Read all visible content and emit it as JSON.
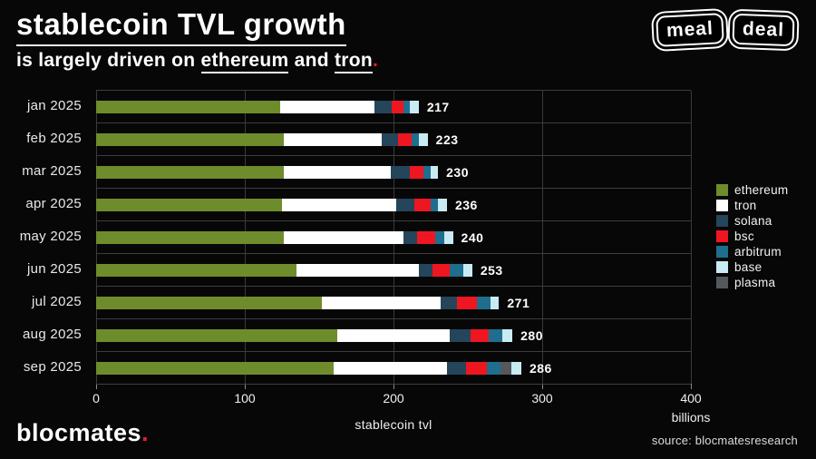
{
  "header": {
    "title": "stablecoin TVL growth",
    "subtitle_prefix": "is largely driven on ",
    "subtitle_chain1": "ethereum",
    "subtitle_mid": " and ",
    "subtitle_chain2": "tron",
    "subtitle_period": ".",
    "logo_word1": "meal",
    "logo_word2": "deal"
  },
  "chart_data": {
    "type": "bar",
    "orientation": "horizontal",
    "stacked": true,
    "xlabel": "stablecoin tvl",
    "x_unit": "billions",
    "xlim": [
      0,
      400
    ],
    "x_ticks": [
      0,
      100,
      200,
      300,
      400
    ],
    "grid": "vertical",
    "legend_position": "right",
    "legend": [
      "ethereum",
      "tron",
      "solana",
      "bsc",
      "arbitrum",
      "base",
      "plasma"
    ],
    "series_colors": {
      "ethereum": "#6f8c2c",
      "tron": "#ffffff",
      "solana": "#25455a",
      "bsc": "#ee1620",
      "arbitrum": "#1f6e8e",
      "base": "#c9ebf3",
      "plasma": "#54585a"
    },
    "categories": [
      "jan 2025",
      "feb 2025",
      "mar 2025",
      "apr 2025",
      "may 2025",
      "jun 2025",
      "jul 2025",
      "aug 2025",
      "sep 2025"
    ],
    "rows": [
      {
        "month": "jan 2025",
        "total": 217,
        "segments": [
          {
            "chain": "ethereum",
            "value": 124
          },
          {
            "chain": "tron",
            "value": 63
          },
          {
            "chain": "solana",
            "value": 12
          },
          {
            "chain": "bsc",
            "value": 8
          },
          {
            "chain": "arbitrum",
            "value": 4
          },
          {
            "chain": "base",
            "value": 6
          }
        ]
      },
      {
        "month": "feb 2025",
        "total": 223,
        "segments": [
          {
            "chain": "ethereum",
            "value": 126
          },
          {
            "chain": "tron",
            "value": 66
          },
          {
            "chain": "solana",
            "value": 11
          },
          {
            "chain": "bsc",
            "value": 9
          },
          {
            "chain": "arbitrum",
            "value": 5
          },
          {
            "chain": "base",
            "value": 6
          }
        ]
      },
      {
        "month": "mar 2025",
        "total": 230,
        "segments": [
          {
            "chain": "ethereum",
            "value": 126
          },
          {
            "chain": "tron",
            "value": 72
          },
          {
            "chain": "solana",
            "value": 13
          },
          {
            "chain": "bsc",
            "value": 9
          },
          {
            "chain": "arbitrum",
            "value": 5
          },
          {
            "chain": "base",
            "value": 5
          }
        ]
      },
      {
        "month": "apr 2025",
        "total": 236,
        "segments": [
          {
            "chain": "ethereum",
            "value": 125
          },
          {
            "chain": "tron",
            "value": 77
          },
          {
            "chain": "solana",
            "value": 12
          },
          {
            "chain": "bsc",
            "value": 11
          },
          {
            "chain": "arbitrum",
            "value": 5
          },
          {
            "chain": "base",
            "value": 6
          }
        ]
      },
      {
        "month": "may 2025",
        "total": 240,
        "segments": [
          {
            "chain": "ethereum",
            "value": 126
          },
          {
            "chain": "tron",
            "value": 81
          },
          {
            "chain": "solana",
            "value": 9
          },
          {
            "chain": "bsc",
            "value": 12
          },
          {
            "chain": "arbitrum",
            "value": 6
          },
          {
            "chain": "base",
            "value": 6
          }
        ]
      },
      {
        "month": "jun 2025",
        "total": 253,
        "segments": [
          {
            "chain": "ethereum",
            "value": 135
          },
          {
            "chain": "tron",
            "value": 82
          },
          {
            "chain": "solana",
            "value": 9
          },
          {
            "chain": "bsc",
            "value": 12
          },
          {
            "chain": "arbitrum",
            "value": 9
          },
          {
            "chain": "base",
            "value": 6
          }
        ]
      },
      {
        "month": "jul 2025",
        "total": 271,
        "segments": [
          {
            "chain": "ethereum",
            "value": 152
          },
          {
            "chain": "tron",
            "value": 80
          },
          {
            "chain": "solana",
            "value": 11
          },
          {
            "chain": "bsc",
            "value": 13
          },
          {
            "chain": "arbitrum",
            "value": 9
          },
          {
            "chain": "base",
            "value": 6
          }
        ]
      },
      {
        "month": "aug 2025",
        "total": 280,
        "segments": [
          {
            "chain": "ethereum",
            "value": 162
          },
          {
            "chain": "tron",
            "value": 76
          },
          {
            "chain": "solana",
            "value": 14
          },
          {
            "chain": "bsc",
            "value": 12
          },
          {
            "chain": "arbitrum",
            "value": 9
          },
          {
            "chain": "base",
            "value": 7
          }
        ]
      },
      {
        "month": "sep 2025",
        "total": 286,
        "segments": [
          {
            "chain": "ethereum",
            "value": 160
          },
          {
            "chain": "tron",
            "value": 76
          },
          {
            "chain": "solana",
            "value": 13
          },
          {
            "chain": "bsc",
            "value": 14
          },
          {
            "chain": "arbitrum",
            "value": 9
          },
          {
            "chain": "plasma",
            "value": 7
          },
          {
            "chain": "base",
            "value": 7
          }
        ]
      }
    ]
  },
  "footer": {
    "brand": "blocmates",
    "brand_period": ".",
    "source": "source: blocmatesresearch"
  },
  "colors": {
    "background": "#070707",
    "accent_red": "#ea1b2d",
    "gridline": "#3a3a3a",
    "text": "#ffffff"
  }
}
